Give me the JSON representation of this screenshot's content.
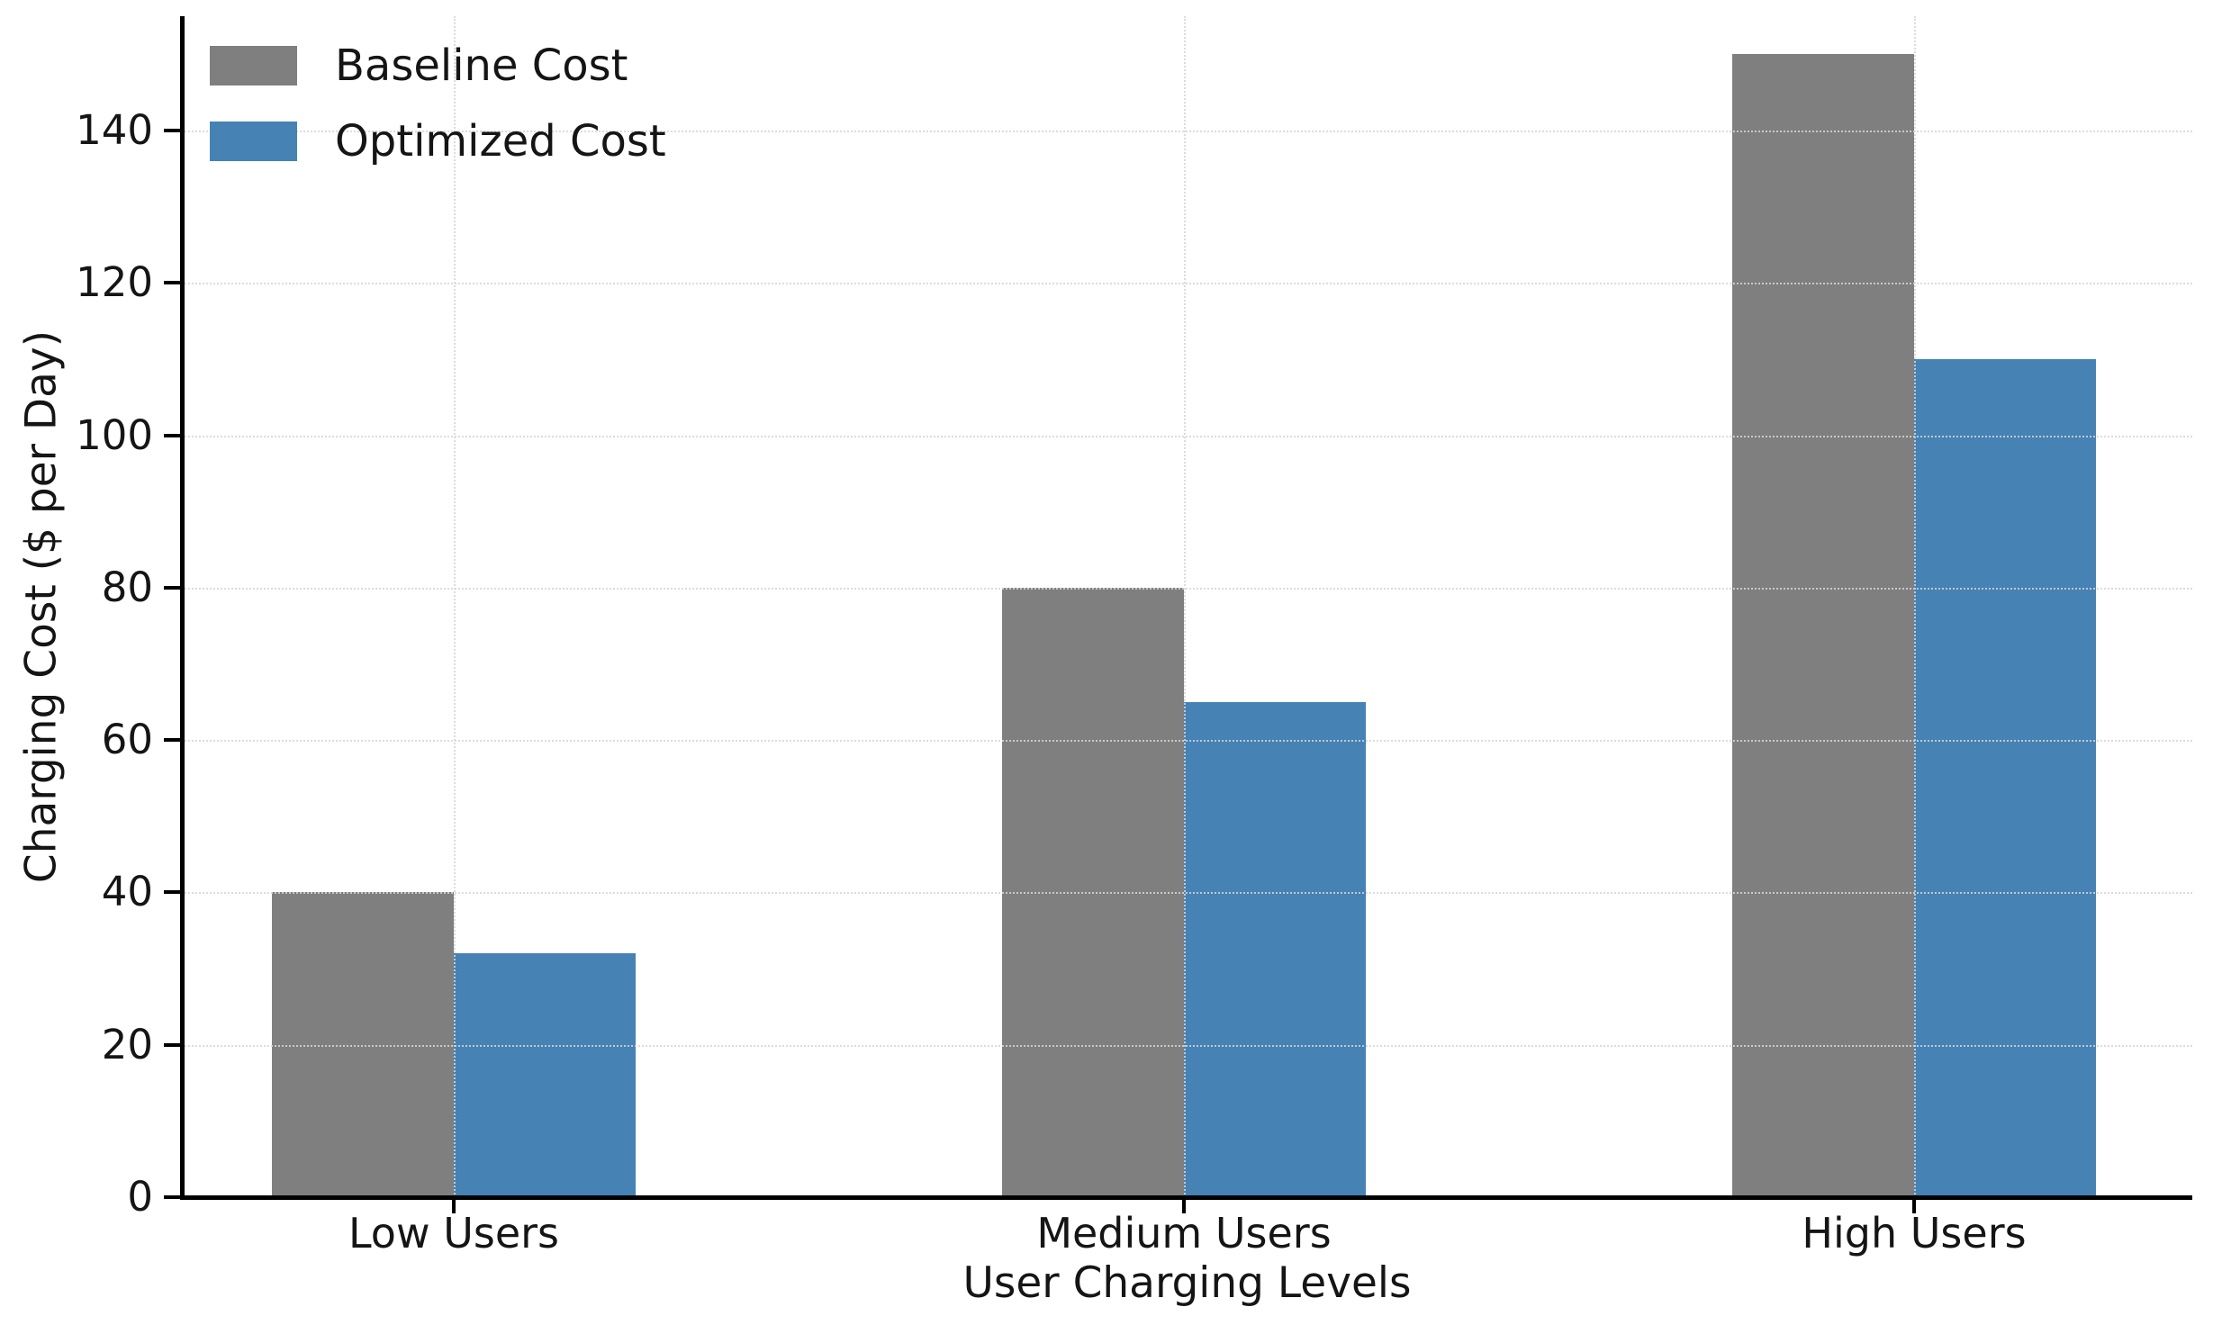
{
  "figure": {
    "xlabel": "User Charging Levels",
    "ylabel": "Charging Cost ($ per Day)"
  },
  "legend": {
    "items": [
      {
        "label": "Baseline Cost",
        "color": "#7f7f7f"
      },
      {
        "label": "Optimized Cost",
        "color": "#4682b4"
      }
    ]
  },
  "chart_data": {
    "type": "bar",
    "categories": [
      "Low Users",
      "Medium Users",
      "High Users"
    ],
    "series": [
      {
        "name": "Baseline Cost",
        "color": "#7f7f7f",
        "values": [
          40,
          80,
          150
        ]
      },
      {
        "name": "Optimized Cost",
        "color": "#4682b4",
        "values": [
          32,
          65,
          110
        ]
      }
    ],
    "title": "",
    "xlabel": "User Charging Levels",
    "ylabel": "Charging Cost ($ per Day)",
    "ylim": [
      0,
      155
    ],
    "yticks": [
      0,
      20,
      40,
      60,
      80,
      100,
      120,
      140
    ],
    "grid": true,
    "grid_style": "dotted",
    "legend_position": "upper left"
  },
  "colors": {
    "axis": "#000000",
    "text": "#151515",
    "grid": "#d6d6d6",
    "background": "#ffffff"
  }
}
